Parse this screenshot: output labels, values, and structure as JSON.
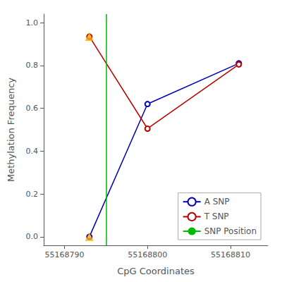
{
  "chart_data": {
    "type": "line",
    "xlabel": "CpG Coordinates",
    "ylabel": "Methylation Frequency",
    "series": [
      {
        "name": "A SNP",
        "color": "#0000BB",
        "marker": "open_circle",
        "x": [
          55168793,
          55168800,
          55168811
        ],
        "values": [
          0.0,
          0.62,
          0.81
        ]
      },
      {
        "name": "T SNP",
        "color": "#BB0000",
        "marker": "open_circle",
        "x": [
          55168793,
          55168800,
          55168811
        ],
        "values": [
          0.935,
          0.505,
          0.805
        ]
      },
      {
        "type": "scatter",
        "marker": "triangle",
        "color": "#FFA500",
        "x": [
          55168793,
          55168793
        ],
        "values": [
          0.0,
          0.935
        ]
      },
      {
        "name": "SNP Position",
        "type": "vline",
        "color": "#00BB00",
        "x": 55168795
      }
    ],
    "xlim": [
      55168787.5,
      55168814.5
    ],
    "ylim": [
      -0.04,
      1.04
    ],
    "xticks": [
      55168790,
      55168800,
      55168810
    ],
    "yticks": [
      {
        "value": 0.0,
        "label": "0.0"
      },
      0.2,
      0.4,
      0.6,
      0.8,
      {
        "value": 1.0,
        "label": "1.0"
      }
    ],
    "grid": false,
    "legend": "lower right"
  }
}
